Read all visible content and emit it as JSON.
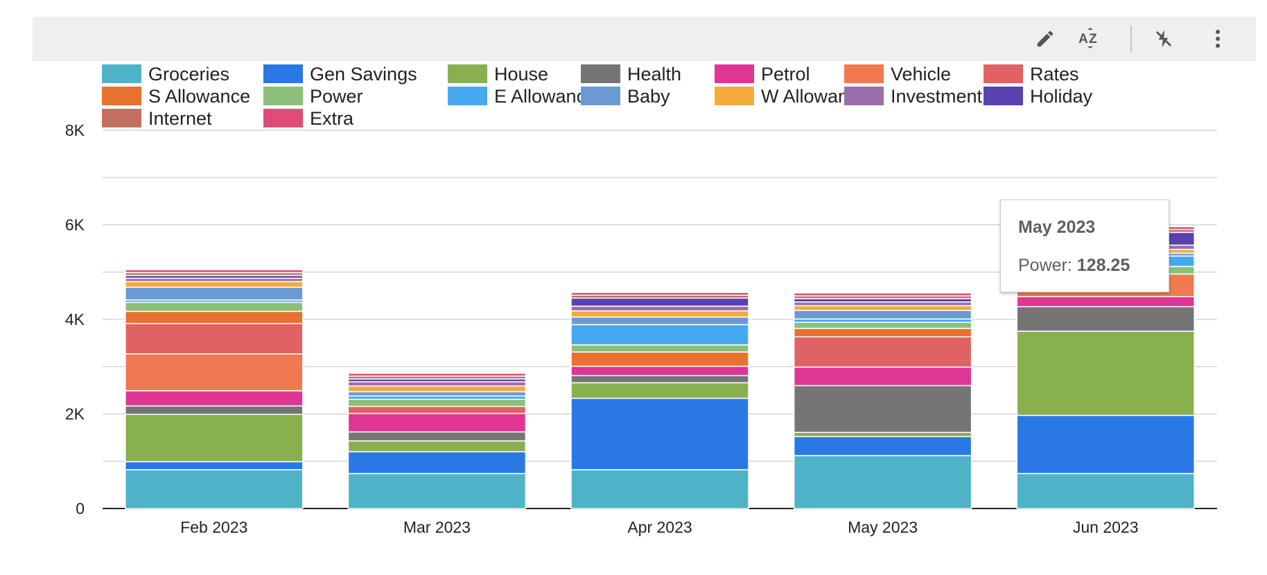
{
  "toolbar": {
    "icons": [
      "pencil-icon",
      "sort-az-icon",
      "flash-off-icon",
      "more-vert-icon"
    ]
  },
  "chart_data": {
    "type": "bar",
    "stacked": true,
    "title": "",
    "xlabel": "",
    "ylabel": "",
    "categories": [
      "Feb 2023",
      "Mar 2023",
      "Apr 2023",
      "May 2023",
      "Jun 2023"
    ],
    "ylim": [
      0,
      8000
    ],
    "yticks": [
      0,
      2000,
      4000,
      6000,
      8000
    ],
    "ytick_labels": [
      "0",
      "2K",
      "4K",
      "6K",
      "8K"
    ],
    "grid": true,
    "legend_position": "top",
    "series": [
      {
        "name": "Groceries",
        "color": "#4eb3c8",
        "values": [
          820,
          740,
          820,
          1120,
          740
        ]
      },
      {
        "name": "Gen Savings",
        "color": "#2a78e4",
        "values": [
          170,
          460,
          1510,
          400,
          1230
        ]
      },
      {
        "name": "House",
        "color": "#88b04f",
        "values": [
          1000,
          230,
          330,
          90,
          1780
        ]
      },
      {
        "name": "Health",
        "color": "#757575",
        "values": [
          180,
          190,
          150,
          990,
          520
        ]
      },
      {
        "name": "Petrol",
        "color": "#e03595",
        "values": [
          320,
          390,
          200,
          390,
          210
        ]
      },
      {
        "name": "Vehicle",
        "color": "#f0794f",
        "values": [
          780,
          0,
          0,
          0,
          480
        ]
      },
      {
        "name": "Rates",
        "color": "#e06265",
        "values": [
          640,
          150,
          0,
          640,
          0
        ]
      },
      {
        "name": "S Allowance",
        "color": "#e8722f",
        "values": [
          260,
          0,
          300,
          180,
          0
        ]
      },
      {
        "name": "Power",
        "color": "#8ac07a",
        "values": [
          190,
          150,
          150,
          128.25,
          160
        ]
      },
      {
        "name": "E Allowance",
        "color": "#46a8ef",
        "values": [
          50,
          70,
          430,
          70,
          220
        ]
      },
      {
        "name": "Baby",
        "color": "#6a9ad2",
        "values": [
          270,
          90,
          160,
          180,
          60
        ]
      },
      {
        "name": "W Allowance",
        "color": "#f5aa3e",
        "values": [
          120,
          120,
          130,
          100,
          80
        ]
      },
      {
        "name": "Investment",
        "color": "#9b6faa",
        "values": [
          70,
          90,
          100,
          80,
          90
        ]
      },
      {
        "name": "Holiday",
        "color": "#5942b0",
        "values": [
          60,
          60,
          170,
          70,
          270
        ]
      },
      {
        "name": "Internet",
        "color": "#c4705e",
        "values": [
          60,
          60,
          60,
          60,
          60
        ]
      },
      {
        "name": "Extra",
        "color": "#dd4d77",
        "values": [
          60,
          60,
          60,
          60,
          60
        ]
      }
    ]
  },
  "tooltip": {
    "title": "May 2023",
    "label": "Power: ",
    "value": "128.25"
  }
}
